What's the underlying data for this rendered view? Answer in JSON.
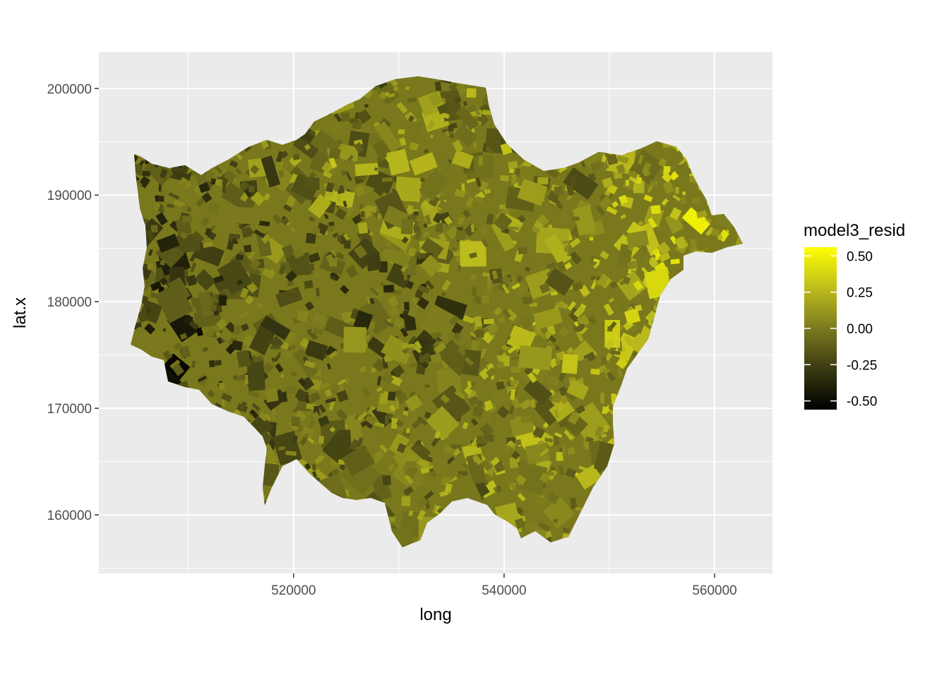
{
  "chart_data": {
    "type": "choropleth map",
    "xlabel": "long",
    "ylabel": "lat.x",
    "x_ticks": [
      520000,
      540000,
      560000
    ],
    "y_ticks": [
      160000,
      170000,
      180000,
      190000,
      200000
    ],
    "x_tick_labels": [
      "520000",
      "540000",
      "560000"
    ],
    "y_tick_labels": [
      "160000",
      "170000",
      "180000",
      "190000",
      "200000"
    ],
    "xlim": [
      501500,
      565500
    ],
    "ylim": [
      154500,
      203400
    ],
    "grid": true,
    "panel_background": "#ebebeb",
    "legend": {
      "title": "model3_resid",
      "position": "right",
      "breaks": [
        0.5,
        0.25,
        0.0,
        -0.25,
        -0.5
      ],
      "labels": [
        "0.50",
        "0.25",
        "0.00",
        "-0.25",
        "-0.50"
      ],
      "range": [
        -0.56,
        0.56
      ],
      "low_color": "#000000",
      "high_color": "#ffff00"
    }
  }
}
